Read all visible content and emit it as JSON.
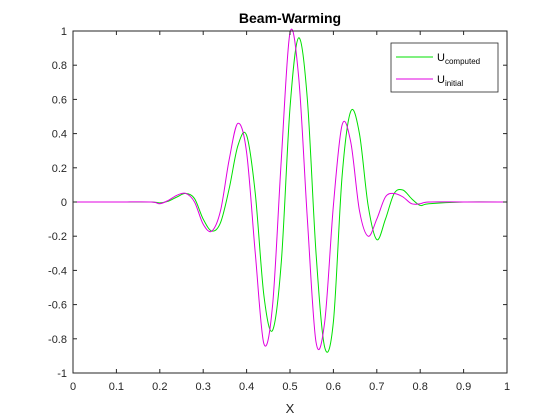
{
  "chart_data": {
    "type": "line",
    "title": "Beam-Warming",
    "xlabel": "X",
    "ylabel": "",
    "xlim": [
      0,
      1
    ],
    "ylim": [
      -1,
      1
    ],
    "x_ticks": [
      "0",
      "0.1",
      "0.2",
      "0.3",
      "0.4",
      "0.5",
      "0.6",
      "0.7",
      "0.8",
      "0.9",
      "1"
    ],
    "y_ticks": [
      "-1",
      "-0.8",
      "-0.6",
      "-0.4",
      "-0.2",
      "0",
      "0.2",
      "0.4",
      "0.6",
      "0.8",
      "1"
    ],
    "grid": false,
    "legend_position": "top-right",
    "x": [
      0,
      0.1,
      0.18,
      0.2,
      0.22,
      0.24,
      0.26,
      0.28,
      0.3,
      0.32,
      0.34,
      0.36,
      0.38,
      0.4,
      0.42,
      0.44,
      0.46,
      0.48,
      0.5,
      0.52,
      0.54,
      0.56,
      0.58,
      0.6,
      0.62,
      0.64,
      0.66,
      0.68,
      0.7,
      0.72,
      0.74,
      0.76,
      0.78,
      0.8,
      0.82,
      0.9,
      1
    ],
    "series": [
      {
        "name_main": "U",
        "name_sub": "computed",
        "color": "#00e000",
        "values": [
          0,
          0,
          0,
          -0.005,
          0.005,
          0.03,
          0.05,
          0.02,
          -0.1,
          -0.17,
          -0.12,
          0.08,
          0.33,
          0.39,
          0.05,
          -0.55,
          -0.75,
          -0.35,
          0.55,
          0.96,
          0.6,
          -0.3,
          -0.85,
          -0.7,
          0.15,
          0.53,
          0.4,
          -0.02,
          -0.22,
          -0.1,
          0.05,
          0.07,
          0.02,
          -0.02,
          -0.01,
          0,
          0
        ]
      },
      {
        "name_main": "U",
        "name_sub": "initial",
        "color": "#e000e0",
        "values": [
          0,
          0,
          0,
          -0.01,
          0.01,
          0.04,
          0.05,
          0.0,
          -0.13,
          -0.17,
          -0.05,
          0.25,
          0.46,
          0.29,
          -0.3,
          -0.83,
          -0.6,
          0.25,
          0.99,
          0.73,
          -0.1,
          -0.82,
          -0.7,
          -0.02,
          0.45,
          0.35,
          -0.05,
          -0.2,
          -0.1,
          0.03,
          0.05,
          0.03,
          -0.01,
          -0.01,
          0,
          0,
          0
        ]
      }
    ]
  }
}
